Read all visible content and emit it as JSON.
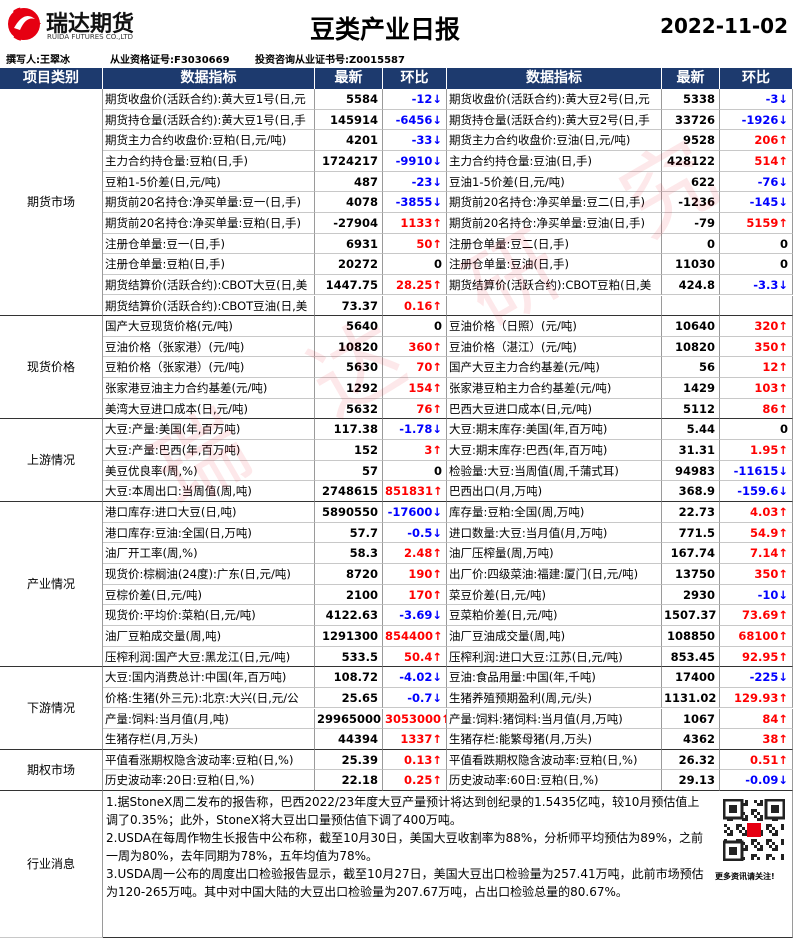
{
  "header": {
    "logo_name": "瑞达期货",
    "logo_sub": "RUIDA FUTURES CO.,LTD",
    "title": "豆类产业日报",
    "date": "2022-11-02"
  },
  "authors": [
    "撰写人:王翠冰",
    "从业资格证号:F3030669",
    "投资咨询从业证书号:Z0015587"
  ],
  "watermark": "瑞达研究",
  "table": {
    "columns": [
      "项目类别",
      "数据指标",
      "最新",
      "环比",
      "数据指标",
      "最新",
      "环比"
    ],
    "sections": [
      {
        "category": "期货市场",
        "rows": [
          [
            "期货收盘价(活跃合约):黄大豆1号(日,元",
            5584,
            "-12↓",
            "期货收盘价(活跃合约):黄大豆2号(日,元",
            5338,
            "-3↓"
          ],
          [
            "期货持仓量(活跃合约):黄大豆1号(日,手",
            145914,
            "-6456↓",
            "期货持仓量(活跃合约):黄大豆2号(日,手",
            33726,
            "-1926↓"
          ],
          [
            "期货主力合约收盘价:豆粕(日,元/吨)",
            4201,
            "-33↓",
            "期货主力合约收盘价:豆油(日,元/吨)",
            9528,
            "206↑"
          ],
          [
            "主力合约持仓量:豆粕(日,手)",
            1724217,
            "-9910↓",
            "主力合约持仓量:豆油(日,手)",
            428122,
            "514↑"
          ],
          [
            "豆粕1-5价差(日,元/吨)",
            487,
            "-23↓",
            "豆油1-5价差(日,元/吨)",
            622,
            "-76↓"
          ],
          [
            "期货前20名持仓:净买单量:豆一(日,手)",
            4078,
            "-3855↓",
            "期货前20名持仓:净买单量:豆二(日,手)",
            -1236,
            "-145↓"
          ],
          [
            "期货前20名持仓:净买单量:豆粕(日,手)",
            -27904,
            "1133↑",
            "期货前20名持仓:净买单量:豆油(日,手)",
            -79,
            "5159↑"
          ],
          [
            "注册仓单量:豆一(日,手)",
            6931,
            "50↑",
            "注册仓单量:豆二(日,手)",
            0,
            "0"
          ],
          [
            "注册仓单量:豆粕(日,手)",
            20272,
            "0",
            "注册仓单量:豆油(日,手)",
            11030,
            "0"
          ],
          [
            "期货结算价(活跃合约):CBOT大豆(日,美",
            1447.75,
            "28.25↑",
            "期货结算价(活跃合约):CBOT豆粕(日,美",
            424.8,
            "-3.3↓"
          ],
          [
            "期货结算价(活跃合约):CBOT豆油(日,美",
            73.37,
            "0.16↑"
          ]
        ]
      },
      {
        "category": "现货价格",
        "rows": [
          [
            "国产大豆现货价格(元/吨)",
            5640,
            "0",
            "豆油价格（日照）(元/吨)",
            10640,
            "320↑"
          ],
          [
            "豆油价格（张家港）(元/吨)",
            10820,
            "360↑",
            "豆油价格（湛江）(元/吨)",
            10820,
            "350↑"
          ],
          [
            "豆粕价格（张家港）(元/吨)",
            5630,
            "70↑",
            "国产大豆主力合约基差(元/吨)",
            56,
            "12↑"
          ],
          [
            "张家港豆油主力合约基差(元/吨)",
            1292,
            "154↑",
            "张家港豆粕主力合约基差(元/吨)",
            1429,
            "103↑"
          ],
          [
            "美湾大豆进口成本(日,元/吨)",
            5632,
            "76↑",
            "巴西大豆进口成本(日,元/吨)",
            5112,
            "86↑"
          ]
        ]
      },
      {
        "category": "上游情况",
        "rows": [
          [
            "大豆:产量:美国(年,百万吨)",
            117.38,
            "-1.78↓",
            "大豆:期末库存:美国(年,百万吨)",
            5.44,
            "0"
          ],
          [
            "大豆:产量:巴西(年,百万吨)",
            152,
            "3↑",
            "大豆:期末库存:巴西(年,百万吨)",
            31.31,
            "1.95↑"
          ],
          [
            "美豆优良率(周,%)",
            57,
            "0",
            "检验量:大豆:当周值(周,千蒲式耳)",
            94983,
            "-11615↓"
          ],
          [
            "大豆:本周出口:当周值(周,吨)",
            2748615,
            "851831↑",
            "巴西出口(月,万吨)",
            368.9,
            "-159.6↓"
          ]
        ]
      },
      {
        "category": "产业情况",
        "rows": [
          [
            "港口库存:进口大豆(日,吨)",
            5890550,
            "-17600↓",
            "库存量:豆粕:全国(周,万吨)",
            22.73,
            "4.03↑"
          ],
          [
            "港口库存:豆油:全国(日,万吨)",
            57.7,
            "-0.5↓",
            "进口数量:大豆:当月值(月,万吨)",
            771.5,
            "54.9↑"
          ],
          [
            "油厂开工率(周,%)",
            58.3,
            "2.48↑",
            "油厂压榨量(周,万吨)",
            167.74,
            "7.14↑"
          ],
          [
            "现货价:棕榈油(24度):广东(日,元/吨)",
            8720,
            "190↑",
            "出厂价:四级菜油:福建:厦门(日,元/吨)",
            13750,
            "350↑"
          ],
          [
            "豆棕价差(日,元/吨)",
            2100,
            "170↑",
            "菜豆价差(日,元/吨)",
            2930,
            "-10↓"
          ],
          [
            "现货价:平均价:菜粕(日,元/吨)",
            4122.63,
            "-3.69↓",
            "豆菜粕价差(日,元/吨)",
            1507.37,
            "73.69↑"
          ],
          [
            "油厂豆粕成交量(周,吨)",
            1291300,
            "854400↑",
            "油厂豆油成交量(周,吨)",
            108850,
            "68100↑"
          ],
          [
            "压榨利润:国产大豆:黑龙江(日,元/吨)",
            533.5,
            "50.4↑",
            "压榨利润:进口大豆:江苏(日,元/吨)",
            853.45,
            "92.95↑"
          ]
        ]
      },
      {
        "category": "下游情况",
        "rows": [
          [
            "大豆:国内消费总计:中国(年,百万吨)",
            108.72,
            "-4.02↓",
            "豆油:食品用量:中国(年,千吨)",
            17400,
            "-225↓"
          ],
          [
            "价格:生猪(外三元):北京:大兴(日,元/公",
            25.65,
            "-0.7↓",
            "生猪养殖预期盈利(周,元/头)",
            1131.02,
            "129.93↑"
          ],
          [
            "产量:饲料:当月值(月,吨)",
            29965000,
            "3053000↑",
            "产量:饲料:猪饲料:当月值(月,万吨)",
            1067,
            "84↑"
          ],
          [
            "生猪存栏(月,万头)",
            44394,
            "1337↑",
            "生猪存栏:能繁母猪(月,万头)",
            4362,
            "38↑"
          ]
        ]
      },
      {
        "category": "期权市场",
        "rows": [
          [
            "平值看涨期权隐含波动率:豆粕(日,%)",
            25.39,
            "0.13↑",
            "平值看跌期权隐含波动率:豆粕(日,%)",
            26.32,
            "0.51↑"
          ],
          [
            "历史波动率:20日:豆粕(日,%)",
            22.18,
            "0.25↑",
            "历史波动率:60日:豆粕(日,%)",
            29.13,
            "-0.09↓"
          ]
        ]
      }
    ]
  },
  "news": {
    "category": "行业消息",
    "paragraphs": [
      "1.据StoneX周二发布的报告称，巴西2022/23年度大豆产量预计将达到创纪录的1.5435亿吨，较10月预估值上调了0.35%；此外，StoneX将大豆出口量预估值下调了400万吨。",
      "2.USDA在每周作物生长报告中公布称，截至10月30日，美国大豆收割率为88%，分析师平均预估为89%，之前一周为80%，去年同期为78%，五年均值为78%。",
      "3.USDA周一公布的周度出口检验报告显示，截至10月27日，美国大豆出口检验量为257.41万吨，此前市场预估为120-265万吨。其中对中国大陆的大豆出口检验量为207.67万吨，占出口检验总量的80.67%。"
    ],
    "qr_caption": "更多资讯请关注!"
  }
}
